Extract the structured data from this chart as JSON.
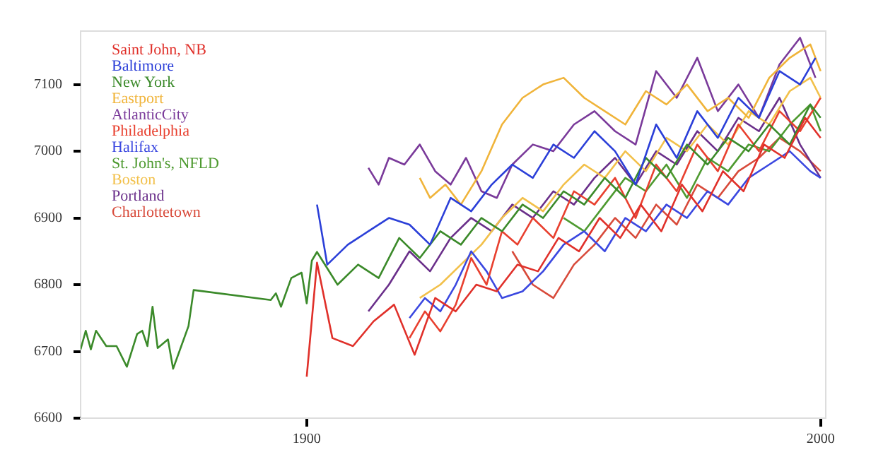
{
  "chart_data": {
    "type": "line",
    "xlim": [
      1856,
      2001
    ],
    "xticks": [
      1900,
      2000
    ],
    "ylim": [
      6600,
      7180
    ],
    "yticks": [
      6600,
      6700,
      6800,
      6900,
      7000,
      7100
    ],
    "grid": false,
    "legend": "top left",
    "marker": "none",
    "series": [
      {
        "name": "Saint John, NB",
        "color": "#e0302a",
        "x": [
          1900,
          1902,
          1905,
          1909,
          1913,
          1917,
          1921,
          1925,
          1929,
          1933,
          1937,
          1941,
          1945,
          1949,
          1953,
          1957,
          1961,
          1965,
          1969,
          1973,
          1977,
          1981,
          1985,
          1989,
          1993,
          1997,
          2000
        ],
        "values": [
          6662,
          6833,
          6720,
          6708,
          6745,
          6770,
          6695,
          6780,
          6760,
          6800,
          6790,
          6830,
          6820,
          6870,
          6850,
          6900,
          6870,
          6920,
          6880,
          6950,
          6910,
          6970,
          6940,
          7010,
          6990,
          7050,
          7020
        ]
      },
      {
        "name": "Baltimore",
        "color": "#2b3fd8",
        "x": [
          1902,
          1904,
          1908,
          1912,
          1916,
          1920,
          1924,
          1928,
          1932,
          1936,
          1940,
          1944,
          1948,
          1952,
          1956,
          1960,
          1964,
          1968,
          1972,
          1976,
          1980,
          1984,
          1988,
          1992,
          1996,
          1999
        ],
        "values": [
          6920,
          6830,
          6860,
          6880,
          6900,
          6890,
          6860,
          6930,
          6910,
          6950,
          6980,
          6960,
          7010,
          6990,
          7030,
          7000,
          6950,
          7040,
          6990,
          7060,
          7020,
          7080,
          7050,
          7120,
          7100,
          7140
        ]
      },
      {
        "name": "New York",
        "color": "#3b8a2a",
        "x": [
          1856,
          1857,
          1858,
          1859,
          1861,
          1863,
          1865,
          1867,
          1868,
          1869,
          1870,
          1871,
          1873,
          1874,
          1877,
          1878,
          1893,
          1894,
          1895,
          1897,
          1899,
          1900,
          1901,
          1902,
          1906,
          1910,
          1914,
          1918,
          1922,
          1926,
          1930,
          1934,
          1938,
          1942,
          1946,
          1950,
          1954,
          1958,
          1962,
          1966,
          1970,
          1974,
          1978,
          1982,
          1986,
          1990,
          1994,
          1998,
          2000
        ],
        "values": [
          6703,
          6731,
          6703,
          6731,
          6708,
          6708,
          6677,
          6726,
          6731,
          6708,
          6767,
          6705,
          6718,
          6674,
          6738,
          6792,
          6777,
          6787,
          6767,
          6810,
          6818,
          6772,
          6836,
          6849,
          6800,
          6830,
          6810,
          6870,
          6840,
          6880,
          6860,
          6900,
          6880,
          6920,
          6900,
          6940,
          6920,
          6960,
          6930,
          6990,
          6960,
          7010,
          6980,
          7020,
          7000,
          7040,
          7010,
          7070,
          7050
        ]
      },
      {
        "name": "Eastport",
        "color": "#f0b43a",
        "x": [
          1922,
          1924,
          1927,
          1930,
          1934,
          1938,
          1942,
          1946,
          1950,
          1954,
          1958,
          1962,
          1966,
          1970,
          1974,
          1978,
          1982,
          1986,
          1990,
          1994,
          1998,
          2000
        ],
        "values": [
          6960,
          6930,
          6950,
          6920,
          6970,
          7040,
          7080,
          7100,
          7110,
          7080,
          7060,
          7040,
          7090,
          7070,
          7100,
          7060,
          7080,
          7050,
          7110,
          7140,
          7160,
          7120
        ]
      },
      {
        "name": "AtlanticCity",
        "color": "#7a3a9a",
        "x": [
          1912,
          1914,
          1916,
          1919,
          1922,
          1925,
          1928,
          1931,
          1934,
          1937,
          1940,
          1944,
          1948,
          1952,
          1956,
          1960,
          1964,
          1968,
          1972,
          1976,
          1980,
          1984,
          1988,
          1992,
          1996,
          1999
        ],
        "values": [
          6975,
          6950,
          6990,
          6980,
          7010,
          6970,
          6950,
          6990,
          6940,
          6930,
          6980,
          7010,
          7000,
          7040,
          7060,
          7030,
          7010,
          7120,
          7080,
          7140,
          7060,
          7100,
          7050,
          7130,
          7170,
          7110
        ]
      },
      {
        "name": "Philadelphia",
        "color": "#e8402f",
        "x": [
          1920,
          1923,
          1926,
          1929,
          1932,
          1935,
          1938,
          1941,
          1944,
          1948,
          1952,
          1956,
          1960,
          1964,
          1968,
          1972,
          1976,
          1980,
          1984,
          1988,
          1992,
          1996,
          2000
        ],
        "values": [
          6720,
          6760,
          6730,
          6770,
          6840,
          6800,
          6880,
          6860,
          6900,
          6870,
          6940,
          6920,
          6960,
          6900,
          6980,
          6940,
          7010,
          6970,
          7040,
          7000,
          7060,
          7030,
          7080
        ]
      },
      {
        "name": "Halifax",
        "color": "#3b48e0",
        "x": [
          1920,
          1923,
          1926,
          1929,
          1932,
          1935,
          1938,
          1942,
          1946,
          1950,
          1954,
          1958,
          1962,
          1966,
          1970,
          1974,
          1978,
          1982,
          1986,
          1990,
          1994,
          1998,
          2000
        ],
        "values": [
          6750,
          6780,
          6760,
          6800,
          6850,
          6820,
          6780,
          6790,
          6820,
          6860,
          6880,
          6850,
          6900,
          6880,
          6920,
          6900,
          6940,
          6920,
          6960,
          6980,
          7000,
          6970,
          6960
        ]
      },
      {
        "name": "St. John's, NFLD",
        "color": "#4e9a30",
        "x": [
          1950,
          1954,
          1958,
          1962,
          1966,
          1970,
          1974,
          1978,
          1982,
          1986,
          1990,
          1994,
          1998,
          2000
        ],
        "values": [
          6900,
          6880,
          6920,
          6960,
          6940,
          6980,
          6930,
          6990,
          6970,
          7010,
          7000,
          7040,
          7070,
          7030
        ]
      },
      {
        "name": "Boston",
        "color": "#f2c04a",
        "x": [
          1922,
          1926,
          1930,
          1934,
          1938,
          1942,
          1946,
          1950,
          1954,
          1958,
          1962,
          1966,
          1970,
          1974,
          1978,
          1982,
          1986,
          1990,
          1994,
          1998,
          2000
        ],
        "values": [
          6780,
          6800,
          6830,
          6860,
          6900,
          6930,
          6910,
          6950,
          6980,
          6960,
          7000,
          6970,
          7020,
          7000,
          7040,
          7010,
          7060,
          7040,
          7090,
          7110,
          7080
        ]
      },
      {
        "name": "Portland",
        "color": "#6a2f8a",
        "x": [
          1912,
          1916,
          1920,
          1924,
          1928,
          1932,
          1936,
          1940,
          1944,
          1948,
          1952,
          1956,
          1960,
          1964,
          1968,
          1972,
          1976,
          1980,
          1984,
          1988,
          1992,
          1996,
          2000
        ],
        "values": [
          6760,
          6800,
          6850,
          6820,
          6870,
          6900,
          6880,
          6920,
          6900,
          6940,
          6920,
          6960,
          6990,
          6950,
          7000,
          6980,
          7030,
          7000,
          7050,
          7030,
          7080,
          7010,
          6960
        ]
      },
      {
        "name": "Charlottetown",
        "color": "#d84a3a",
        "x": [
          1940,
          1944,
          1948,
          1952,
          1956,
          1960,
          1964,
          1968,
          1972,
          1976,
          1980,
          1984,
          1988,
          1992,
          1996,
          2000
        ],
        "values": [
          6850,
          6800,
          6780,
          6830,
          6860,
          6900,
          6870,
          6920,
          6890,
          6950,
          6930,
          6970,
          6990,
          7020,
          7000,
          6970
        ]
      }
    ]
  }
}
